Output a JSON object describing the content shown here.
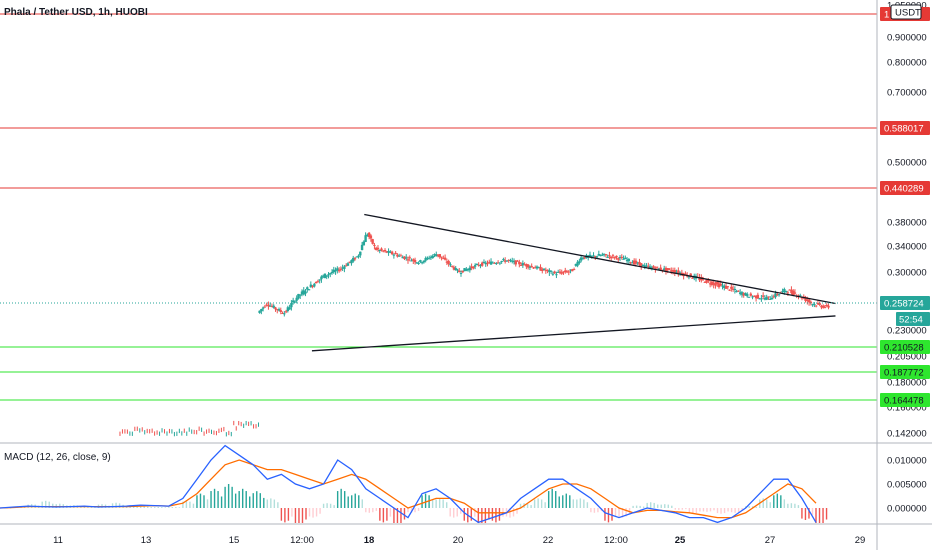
{
  "header": {
    "title": "Phala / Tether USD, 1h, HUOBI",
    "currency_button": "USDT",
    "macd_label": "MACD (12, 26, close, 9)"
  },
  "colors": {
    "up": "#26a69a",
    "down": "#ef5350",
    "resistance": "#e53935",
    "support": "#2ee62e",
    "trendline": "#131722",
    "macd_line": "#2962ff",
    "signal_line": "#ff6d00"
  },
  "chart_data": [
    {
      "type": "line",
      "name": "price",
      "x_labels": [
        "11",
        "13",
        "15",
        "12:00",
        "18",
        "20",
        "22",
        "12:00",
        "25",
        "27",
        "29"
      ],
      "y_ticks": [
        "1.050000",
        "0.900000",
        "0.800000",
        "0.700000",
        "0.500000",
        "0.380000",
        "0.340000",
        "0.300000",
        "0.230000",
        "0.205000",
        "0.180000",
        "0.160000",
        "0.142000"
      ],
      "price_path": [
        [
          0,
          0.14
        ],
        [
          8,
          0.141
        ],
        [
          10,
          0.145
        ],
        [
          12,
          0.15
        ],
        [
          13,
          0.168
        ],
        [
          13.6,
          0.205
        ],
        [
          14,
          0.225
        ],
        [
          14.4,
          0.235
        ],
        [
          14.6,
          0.215
        ],
        [
          15,
          0.245
        ],
        [
          15.3,
          0.262
        ],
        [
          15.7,
          0.25
        ],
        [
          16,
          0.27
        ],
        [
          16.6,
          0.295
        ],
        [
          17,
          0.305
        ],
        [
          17.4,
          0.325
        ],
        [
          17.6,
          0.362
        ],
        [
          17.8,
          0.335
        ],
        [
          18.2,
          0.328
        ],
        [
          18.8,
          0.315
        ],
        [
          19.2,
          0.328
        ],
        [
          19.7,
          0.3
        ],
        [
          20.2,
          0.312
        ],
        [
          20.8,
          0.318
        ],
        [
          21.4,
          0.308
        ],
        [
          21.9,
          0.298
        ],
        [
          22.3,
          0.302
        ],
        [
          22.5,
          0.322
        ],
        [
          23,
          0.326
        ],
        [
          23.5,
          0.32
        ],
        [
          24,
          0.308
        ],
        [
          24.6,
          0.302
        ],
        [
          25.2,
          0.292
        ],
        [
          25.8,
          0.282
        ],
        [
          26.3,
          0.272
        ],
        [
          26.8,
          0.268
        ],
        [
          27.2,
          0.278
        ],
        [
          27.5,
          0.272
        ],
        [
          27.8,
          0.262
        ],
        [
          28.1,
          0.258
        ]
      ],
      "current_price": "0.258724",
      "countdown": "52:54",
      "resistance_levels": [
        "1",
        "0.588017",
        "0.440289"
      ],
      "support_levels": [
        "0.210528",
        "0.187772",
        "0.164478"
      ],
      "triangle": {
        "upper": [
          [
            17.5,
            0.395
          ],
          [
            28.3,
            0.262
          ]
        ],
        "lower": [
          [
            16.3,
            0.21
          ],
          [
            28.3,
            0.247
          ]
        ]
      },
      "grid": false
    },
    {
      "type": "bar",
      "name": "MACD",
      "y_ticks": [
        "0.010000",
        "0.005000",
        "0.000000"
      ],
      "histogram": [
        0,
        0.0003,
        0.0008,
        0.0015,
        0.0009,
        0.0006,
        0.0004,
        0.0008,
        0.0011,
        0.0006,
        0.0003,
        0.0002,
        0.0002,
        0.0015,
        0.003,
        0.004,
        0.005,
        0.004,
        0.0035,
        0.002,
        -0.003,
        -0.004,
        -0.002,
        0.001,
        0.004,
        0.003,
        -0.001,
        -0.003,
        -0.004,
        -0.001,
        0.003,
        0.002,
        -0.002,
        -0.003,
        -0.004,
        -0.003,
        -0.002,
        0.001,
        0.002,
        0.004,
        0.003,
        0.002,
        -0.001,
        -0.003,
        -0.002,
        0.0005,
        0.0012,
        0.0008,
        -0.0004,
        -0.0012,
        -0.0008,
        -0.0012,
        -0.001,
        0.0004,
        0.002,
        0.003,
        0.001,
        -0.0025,
        -0.004
      ],
      "macd_line": [
        0,
        0.0002,
        0.0004,
        0.0003,
        0.0002,
        0.0003,
        0.0004,
        0.0002,
        0.0003,
        0.0004,
        0.0006,
        0.0005,
        0.0004,
        0.002,
        0.006,
        0.01,
        0.013,
        0.011,
        0.009,
        0.006,
        0.007,
        0.005,
        0.004,
        0.005,
        0.01,
        0.008,
        0.004,
        0.002,
        0.0,
        -0.002,
        0.003,
        0.004,
        0.002,
        -0.001,
        -0.003,
        -0.002,
        -0.001,
        0.002,
        0.004,
        0.006,
        0.006,
        0.004,
        0.002,
        -0.001,
        -0.002,
        -0.001,
        0.0,
        -0.0005,
        -0.001,
        -0.002,
        -0.002,
        -0.003,
        -0.002,
        0.0,
        0.003,
        0.006,
        0.006,
        0.002,
        -0.003
      ],
      "signal_line": [
        0,
        0.0001,
        0.0003,
        0.0003,
        0.0003,
        0.0003,
        0.0003,
        0.0003,
        0.0003,
        0.0003,
        0.0004,
        0.0005,
        0.0004,
        0.001,
        0.003,
        0.006,
        0.009,
        0.01,
        0.009,
        0.008,
        0.008,
        0.007,
        0.006,
        0.005,
        0.006,
        0.007,
        0.006,
        0.004,
        0.002,
        0.0,
        0.001,
        0.002,
        0.002,
        0.001,
        -0.001,
        -0.001,
        -0.001,
        0.0,
        0.002,
        0.004,
        0.005,
        0.005,
        0.004,
        0.002,
        0.0,
        -0.001,
        -0.0005,
        -0.0005,
        -0.0008,
        -0.001,
        -0.0015,
        -0.002,
        -0.002,
        -0.001,
        0.001,
        0.003,
        0.005,
        0.004,
        0.001
      ],
      "grid": false
    }
  ]
}
